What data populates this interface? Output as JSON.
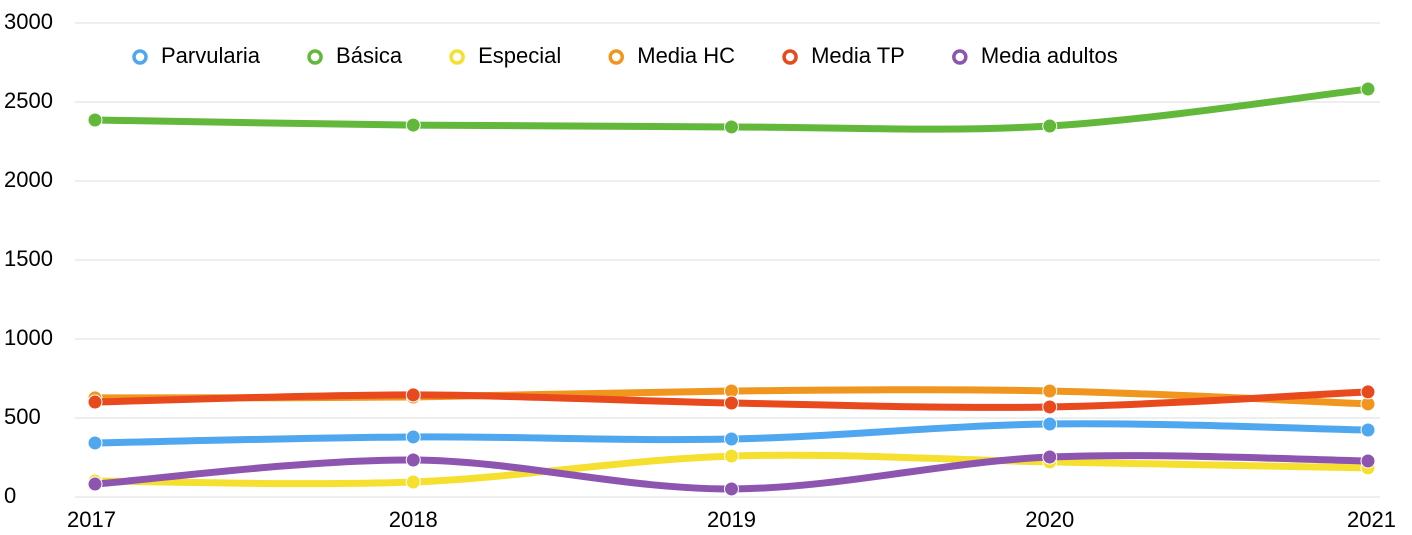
{
  "chart_data": {
    "type": "line",
    "x": [
      2017,
      2018,
      2019,
      2020,
      2021
    ],
    "xlim": [
      2017,
      2021
    ],
    "xticks": [
      2017,
      2018,
      2019,
      2020,
      2021
    ],
    "ylim": [
      0,
      3000
    ],
    "yticks": [
      0,
      500,
      1000,
      1500,
      2000,
      2500,
      3000
    ],
    "grid": true,
    "legend": "top",
    "series": [
      {
        "name": "Parvularia",
        "color": "#4fa7f0",
        "values": [
          342,
          380,
          367,
          462,
          424
        ]
      },
      {
        "name": "Básica",
        "color": "#62b83a",
        "values": [
          2386,
          2354,
          2342,
          2348,
          2582
        ]
      },
      {
        "name": "Especial",
        "color": "#f5e030",
        "values": [
          101,
          95,
          259,
          222,
          184
        ]
      },
      {
        "name": "Media HC",
        "color": "#f0961e",
        "values": [
          627,
          633,
          671,
          671,
          589
        ]
      },
      {
        "name": "Media TP",
        "color": "#e8491d",
        "values": [
          601,
          646,
          595,
          570,
          665
        ]
      },
      {
        "name": "Media adultos",
        "color": "#8e55b0",
        "values": [
          82,
          234,
          51,
          253,
          228
        ]
      }
    ]
  }
}
